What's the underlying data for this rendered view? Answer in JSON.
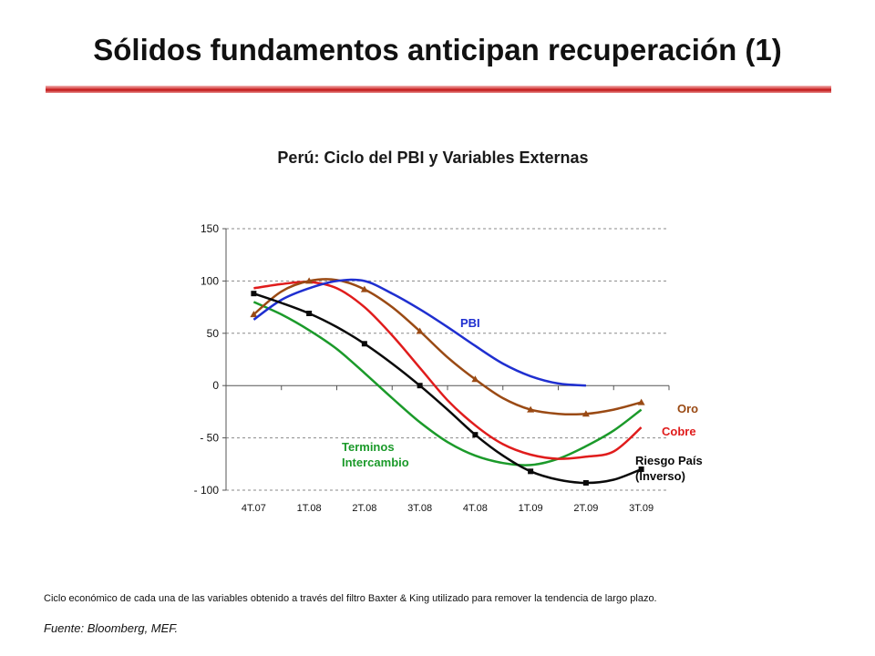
{
  "slide": {
    "title": "Sólidos fundamentos anticipan recuperación (1)",
    "note": "Ciclo económico de cada una de las variables obtenido a través del filtro Baxter & King utilizado para remover la tendencia de largo plazo.",
    "source": "Fuente: Bloomberg, MEF."
  },
  "colors": {
    "rule": "#c81e1e"
  },
  "chart_data": {
    "type": "line",
    "title": "Perú: Ciclo del PBI y Variables Externas",
    "categories": [
      "4T.07",
      "1T.08",
      "2T.08",
      "3T.08",
      "4T.08",
      "1T.09",
      "2T.09",
      "3T.09"
    ],
    "ylim": [
      -100,
      150
    ],
    "yticks": [
      150,
      100,
      50,
      0,
      -50,
      -100
    ],
    "ytick_labels": [
      "150",
      "100",
      "50",
      "0",
      "- 50",
      "- 100"
    ],
    "grid": "horizontal",
    "legend": "inline labels",
    "series": [
      {
        "name": "PBI",
        "color": "#1f2fd0",
        "marker": "none",
        "x": [
          0,
          0.5,
          1,
          1.5,
          2,
          2.5,
          3,
          3.5,
          4,
          4.5,
          5,
          5.5,
          6
        ],
        "values": [
          63,
          82,
          93,
          100,
          100,
          88,
          73,
          56,
          38,
          21,
          9,
          2,
          0
        ]
      },
      {
        "name": "Oro",
        "color": "#9a4a14",
        "marker": "triangle",
        "x": [
          0,
          0.5,
          1,
          1.5,
          2,
          2.5,
          3,
          3.5,
          4,
          4.5,
          5,
          5.5,
          6,
          6.5,
          7
        ],
        "values": [
          68,
          90,
          100,
          101,
          92,
          75,
          52,
          27,
          6,
          -12,
          -23,
          -27,
          -27,
          -23,
          -16
        ]
      },
      {
        "name": "Cobre",
        "color": "#e01c1c",
        "marker": "none",
        "x": [
          0,
          0.5,
          1,
          1.5,
          2,
          2.5,
          3,
          3.5,
          4,
          4.5,
          5,
          5.5,
          6,
          6.5,
          7
        ],
        "values": [
          93,
          97,
          99,
          93,
          75,
          48,
          17,
          -14,
          -38,
          -56,
          -66,
          -70,
          -68,
          -63,
          -40
        ]
      },
      {
        "name": "Terminos Intercambio",
        "color": "#1b9a2a",
        "marker": "none",
        "x": [
          0,
          0.5,
          1,
          1.5,
          2,
          2.5,
          3,
          3.5,
          4,
          4.5,
          5,
          5.5,
          6,
          6.5,
          7
        ],
        "values": [
          80,
          68,
          53,
          35,
          12,
          -12,
          -35,
          -54,
          -67,
          -74,
          -76,
          -70,
          -58,
          -43,
          -23
        ]
      },
      {
        "name": "Riesgo País (Inverso)",
        "color": "#0a0a0a",
        "marker": "square",
        "x": [
          0,
          0.5,
          1,
          1.5,
          2,
          2.5,
          3,
          3.5,
          4,
          4.5,
          5,
          5.5,
          6,
          6.5,
          7
        ],
        "values": [
          88,
          79,
          69,
          56,
          40,
          21,
          0,
          -23,
          -47,
          -67,
          -82,
          -90,
          -93,
          -90,
          -80
        ]
      }
    ],
    "labels": [
      {
        "series": 0,
        "lines": [
          "PBI"
        ]
      },
      {
        "series": 1,
        "lines": [
          "Oro"
        ]
      },
      {
        "series": 2,
        "lines": [
          "Cobre"
        ]
      },
      {
        "series": 3,
        "lines": [
          "Terminos",
          "Intercambio"
        ]
      },
      {
        "series": 4,
        "lines": [
          "Riesgo País",
          "(Inverso)"
        ]
      }
    ]
  }
}
